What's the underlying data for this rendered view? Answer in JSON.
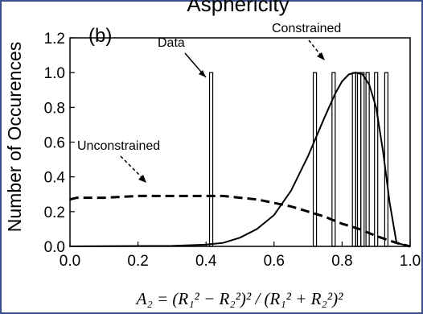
{
  "chart_data": {
    "type": "line",
    "title": "Asphericity",
    "panel_label": "(b)",
    "ylabel": "Number of Occurences",
    "xlabel": "A₂ = (R₁² − R₂²)² / (R₁² + R₂²)²",
    "xlim": [
      0.0,
      1.0
    ],
    "ylim": [
      0.0,
      1.2
    ],
    "x_ticks": [
      "0.0",
      "0.2",
      "0.4",
      "0.6",
      "0.8",
      "1.0"
    ],
    "y_ticks": [
      "0.0",
      "0.2",
      "0.4",
      "0.6",
      "0.8",
      "1.0",
      "1.2"
    ],
    "grid": false,
    "data_lines": {
      "x": [
        0.415,
        0.72,
        0.775,
        0.835,
        0.845,
        0.85,
        0.86,
        0.875,
        0.9,
        0.93
      ],
      "height": 1.0
    },
    "series": [
      {
        "name": "Unconstrained",
        "style": "dashed",
        "x": [
          0.0,
          0.02,
          0.05,
          0.1,
          0.15,
          0.2,
          0.25,
          0.3,
          0.35,
          0.4,
          0.45,
          0.5,
          0.55,
          0.6,
          0.65,
          0.7,
          0.75,
          0.8,
          0.85,
          0.9,
          0.93,
          0.96,
          0.98,
          1.0
        ],
        "y": [
          0.27,
          0.28,
          0.28,
          0.28,
          0.285,
          0.29,
          0.29,
          0.29,
          0.29,
          0.29,
          0.29,
          0.28,
          0.27,
          0.25,
          0.23,
          0.2,
          0.17,
          0.13,
          0.1,
          0.06,
          0.04,
          0.02,
          0.01,
          0.0
        ]
      },
      {
        "name": "Constrained",
        "style": "solid",
        "x": [
          0.0,
          0.3,
          0.4,
          0.45,
          0.5,
          0.55,
          0.6,
          0.65,
          0.7,
          0.75,
          0.78,
          0.8,
          0.82,
          0.84,
          0.86,
          0.88,
          0.9,
          0.92,
          0.94,
          0.96,
          1.0
        ],
        "y": [
          0.0,
          0.003,
          0.01,
          0.02,
          0.05,
          0.1,
          0.18,
          0.32,
          0.52,
          0.75,
          0.88,
          0.95,
          0.99,
          1.0,
          0.99,
          0.93,
          0.8,
          0.55,
          0.25,
          0.02,
          0.0
        ]
      }
    ],
    "annotations": [
      {
        "text": "Data"
      },
      {
        "text": "Constrained"
      },
      {
        "text": "Unconstrained"
      }
    ]
  },
  "colors": {
    "frame": "#3b4f8c",
    "ink": "#000000"
  }
}
